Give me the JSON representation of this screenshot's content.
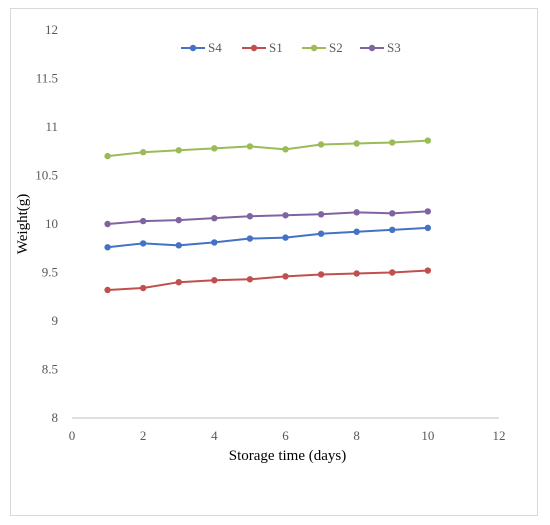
{
  "chart_data": {
    "type": "line",
    "title": "",
    "xlabel": "Storage time (days)",
    "ylabel": "Weight(g)",
    "xlim": [
      0,
      12
    ],
    "ylim": [
      8,
      12
    ],
    "x_ticks": [
      "0",
      "2",
      "4",
      "6",
      "8",
      "10",
      "12"
    ],
    "y_ticks": [
      "8",
      "8.5",
      "9",
      "9.5",
      "10",
      "10.5",
      "11",
      "11.5",
      "12"
    ],
    "grid": false,
    "legend_position": "top",
    "x": [
      1,
      2,
      3,
      4,
      5,
      6,
      7,
      8,
      9,
      10
    ],
    "series": [
      {
        "name": "S4",
        "color": "#4472C4",
        "values": [
          9.76,
          9.8,
          9.78,
          9.81,
          9.85,
          9.86,
          9.9,
          9.92,
          9.94,
          9.96
        ]
      },
      {
        "name": "S1",
        "color": "#C0504D",
        "values": [
          9.32,
          9.34,
          9.4,
          9.42,
          9.43,
          9.46,
          9.48,
          9.49,
          9.5,
          9.52
        ]
      },
      {
        "name": "S2",
        "color": "#9BBB59",
        "values": [
          10.7,
          10.74,
          10.76,
          10.78,
          10.8,
          10.77,
          10.82,
          10.83,
          10.84,
          10.86
        ]
      },
      {
        "name": "S3",
        "color": "#8064A2",
        "values": [
          10.0,
          10.03,
          10.04,
          10.06,
          10.08,
          10.09,
          10.1,
          10.12,
          10.11,
          10.13
        ]
      }
    ]
  }
}
